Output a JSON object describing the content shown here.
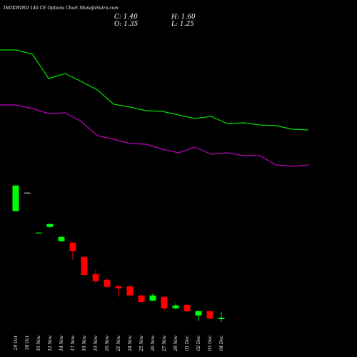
{
  "header": {
    "title": "INOXWIND 140 CE Options Chart MunafaSutra.com",
    "close": "C: 1.40",
    "high": "H: 1.60",
    "open": "O: 1.35",
    "low": "L: 1.25"
  },
  "chart_data": [
    {
      "type": "candlestick",
      "x": [
        "29 Oct",
        "30 Oct",
        "10 Nov",
        "12 Nov",
        "14 Nov",
        "17 Nov",
        "18 Nov",
        "19 Nov",
        "20 Nov",
        "21 Nov",
        "24 Nov",
        "25 Nov",
        "26 Nov",
        "27 Nov",
        "28 Nov",
        "01 Dec",
        "02 Dec",
        "03 Dec",
        "04 Dec"
      ],
      "open": [
        5.13,
        5.78,
        4.35,
        4.58,
        4.08,
        4.03,
        3.53,
        2.93,
        2.73,
        2.5,
        2.5,
        2.18,
        2.0,
        2.13,
        1.73,
        1.85,
        1.48,
        1.63,
        1.35
      ],
      "high": [
        6.03,
        5.78,
        4.4,
        4.7,
        4.25,
        4.05,
        3.53,
        3.1,
        2.78,
        2.55,
        2.53,
        2.2,
        2.25,
        2.13,
        1.9,
        1.88,
        1.65,
        1.65,
        1.6
      ],
      "low": [
        5.13,
        5.75,
        4.35,
        4.55,
        4.05,
        3.43,
        2.9,
        2.6,
        2.45,
        2.13,
        2.15,
        1.93,
        1.98,
        1.65,
        1.7,
        1.6,
        1.28,
        1.35,
        1.25
      ],
      "close": [
        6.03,
        5.78,
        4.38,
        4.68,
        4.23,
        3.73,
        2.9,
        2.68,
        2.48,
        2.43,
        2.18,
        1.95,
        2.18,
        1.73,
        1.83,
        1.63,
        1.63,
        1.38,
        1.4
      ],
      "colors": {
        "up": "#00ff00",
        "down": "#ff0000",
        "flat": "#ccffcc"
      },
      "ylim": [
        0,
        6.25
      ]
    },
    {
      "type": "line",
      "series": [
        {
          "color": "#00e000",
          "values": [
            72,
            72,
            69.6,
            56,
            58.8,
            54.4,
            49.6,
            41.6,
            40,
            38,
            37.6,
            35.6,
            33.6,
            34.8,
            30.8,
            31.2,
            30,
            29.6,
            27.6,
            27.2
          ]
        },
        {
          "color": "#c000c0",
          "values": [
            41.2,
            41.2,
            39.2,
            36.4,
            36.8,
            32,
            24,
            22,
            19.6,
            19.2,
            16.4,
            14.4,
            17.6,
            13.6,
            14.4,
            12.8,
            12.8,
            7.6,
            6.8,
            7.6
          ]
        }
      ],
      "ylim": [
        0,
        100
      ]
    }
  ]
}
